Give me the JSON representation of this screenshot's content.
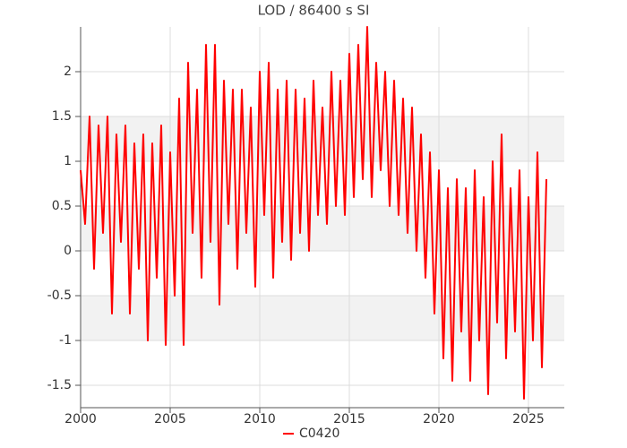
{
  "chart_data": {
    "type": "line",
    "title": "LOD / 86400 s SI",
    "x": [
      2000,
      2000.25,
      2000.5,
      2000.75,
      2001,
      2001.25,
      2001.5,
      2001.75,
      2002,
      2002.25,
      2002.5,
      2002.75,
      2003,
      2003.25,
      2003.5,
      2003.75,
      2004,
      2004.25,
      2004.5,
      2004.75,
      2005,
      2005.25,
      2005.5,
      2005.75,
      2006,
      2006.25,
      2006.5,
      2006.75,
      2007,
      2007.25,
      2007.5,
      2007.75,
      2008,
      2008.25,
      2008.5,
      2008.75,
      2009,
      2009.25,
      2009.5,
      2009.75,
      2010,
      2010.25,
      2010.5,
      2010.75,
      2011,
      2011.25,
      2011.5,
      2011.75,
      2012,
      2012.25,
      2012.5,
      2012.75,
      2013,
      2013.25,
      2013.5,
      2013.75,
      2014,
      2014.25,
      2014.5,
      2014.75,
      2015,
      2015.25,
      2015.5,
      2015.75,
      2016,
      2016.25,
      2016.5,
      2016.75,
      2017,
      2017.25,
      2017.5,
      2017.75,
      2018,
      2018.25,
      2018.5,
      2018.75,
      2019,
      2019.25,
      2019.5,
      2019.75,
      2020,
      2020.25,
      2020.5,
      2020.75,
      2021,
      2021.25,
      2021.5,
      2021.75,
      2022,
      2022.25,
      2022.5,
      2022.75,
      2023,
      2023.25,
      2023.5,
      2023.75,
      2024,
      2024.25,
      2024.5,
      2024.75,
      2025,
      2025.25,
      2025.5,
      2025.75,
      2026
    ],
    "series": [
      {
        "name": "C0420",
        "color": "#ff0000",
        "values": [
          0.9,
          0.3,
          1.5,
          -0.2,
          1.4,
          0.2,
          1.5,
          -0.7,
          1.3,
          0.1,
          1.4,
          -0.7,
          1.2,
          -0.2,
          1.3,
          -1.0,
          1.2,
          -0.3,
          1.4,
          -1.05,
          1.1,
          -0.5,
          1.7,
          -1.05,
          2.1,
          0.2,
          1.8,
          -0.3,
          2.3,
          0.1,
          2.3,
          -0.6,
          1.9,
          0.3,
          1.8,
          -0.2,
          1.8,
          0.2,
          1.6,
          -0.4,
          2.0,
          0.4,
          2.1,
          -0.3,
          1.8,
          0.1,
          1.9,
          -0.1,
          1.8,
          0.2,
          1.7,
          0.0,
          1.9,
          0.4,
          1.6,
          0.3,
          2.0,
          0.5,
          1.9,
          0.4,
          2.2,
          0.6,
          2.3,
          0.8,
          2.5,
          0.6,
          2.1,
          0.9,
          2.0,
          0.5,
          1.9,
          0.4,
          1.7,
          0.2,
          1.6,
          0.0,
          1.3,
          -0.3,
          1.1,
          -0.7,
          0.9,
          -1.2,
          0.7,
          -1.45,
          0.8,
          -0.9,
          0.7,
          -1.45,
          0.9,
          -1.0,
          0.6,
          -1.6,
          1.0,
          -0.8,
          1.3,
          -1.2,
          0.7,
          -0.9,
          0.9,
          -1.65,
          0.6,
          -1.0,
          1.1,
          -1.3,
          0.8
        ]
      }
    ],
    "xlim": [
      2000,
      2027
    ],
    "xticks": [
      2000,
      2005,
      2010,
      2015,
      2020,
      2025
    ],
    "ylim": [
      -1.75,
      2.5
    ],
    "yticks": [
      -1.5,
      -1,
      -0.5,
      0,
      0.5,
      1,
      1.5,
      2
    ],
    "grid": true
  }
}
